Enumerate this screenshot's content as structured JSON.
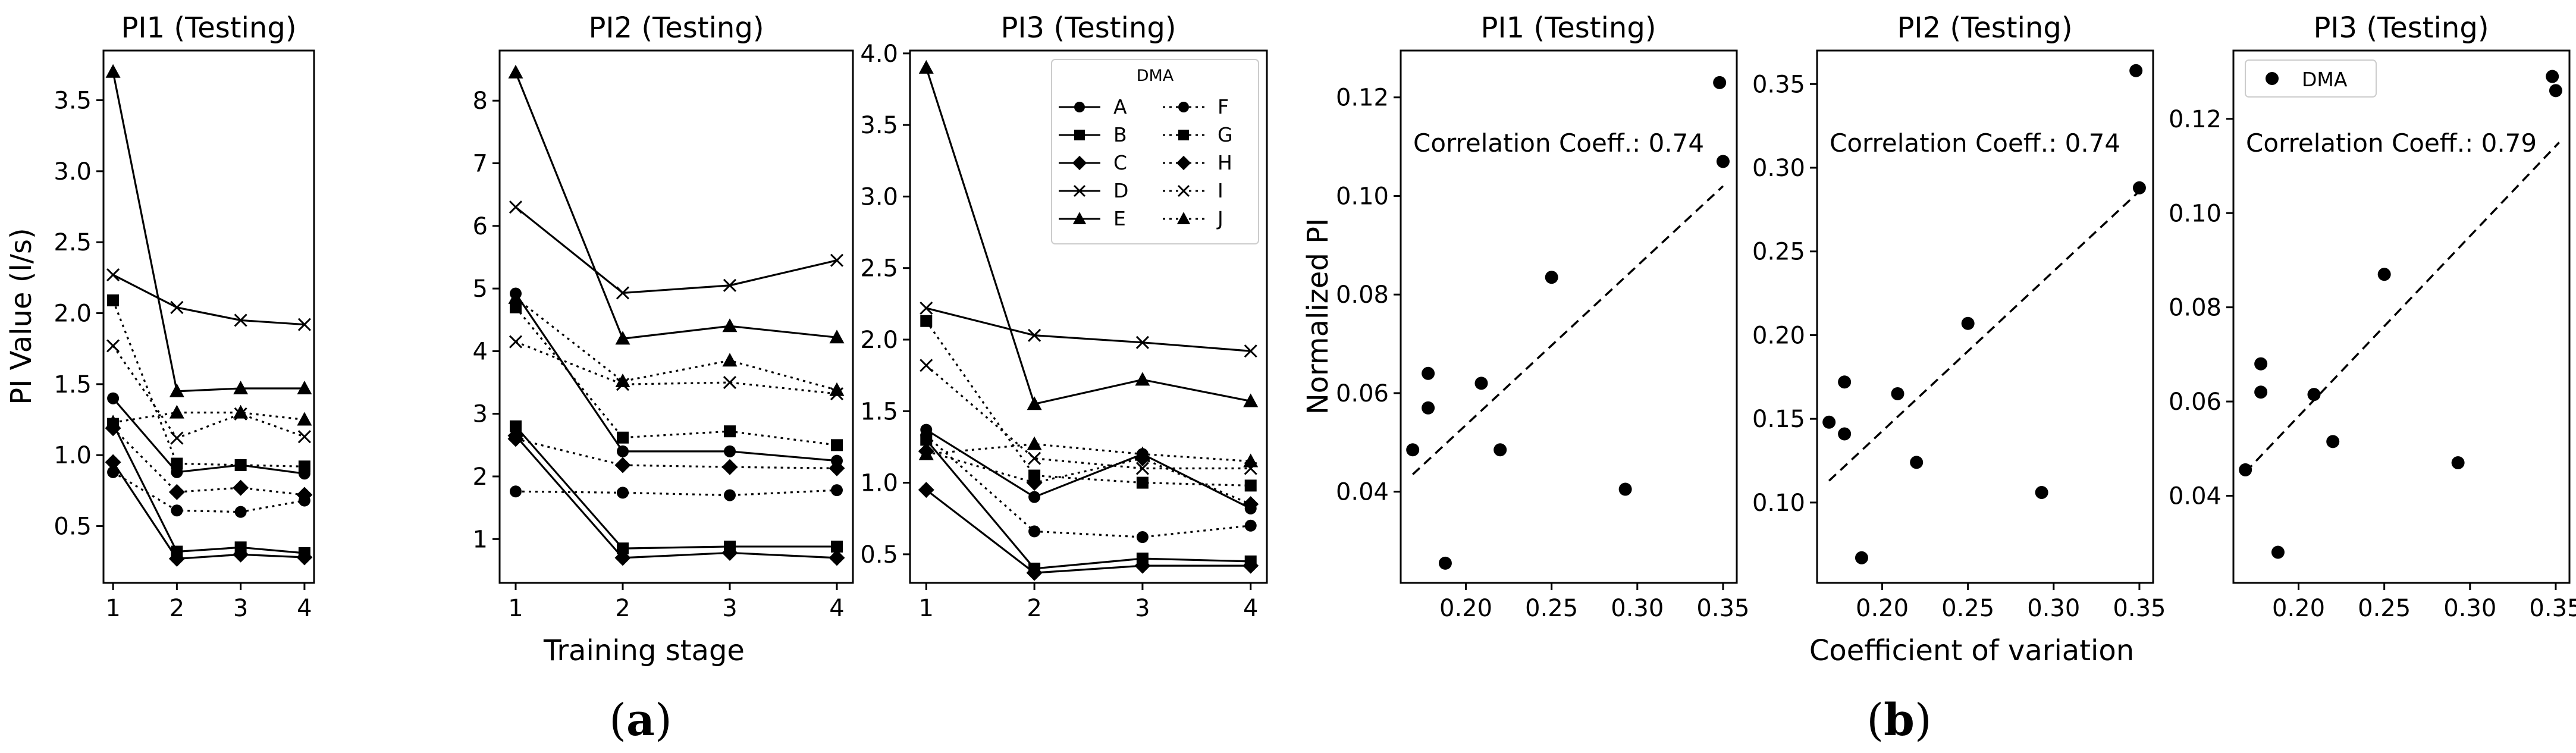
{
  "chart_data": [
    {
      "type": "line",
      "title": "PI1 (Testing)",
      "xlabel": "",
      "ylabel": "PI Value (l/s)",
      "x": [
        1,
        2,
        3,
        4
      ],
      "ylim": [
        0.1,
        3.85
      ],
      "yticks": [
        0.5,
        1.0,
        1.5,
        2.0,
        2.5,
        3.0,
        3.5
      ],
      "series": [
        {
          "name": "A",
          "values": [
            1.4,
            0.88,
            0.93,
            0.87
          ]
        },
        {
          "name": "B",
          "values": [
            1.22,
            0.32,
            0.35,
            0.31
          ]
        },
        {
          "name": "C",
          "values": [
            0.95,
            0.27,
            0.3,
            0.28
          ]
        },
        {
          "name": "D",
          "values": [
            2.27,
            2.04,
            1.95,
            1.92
          ]
        },
        {
          "name": "E",
          "values": [
            3.7,
            1.45,
            1.47,
            1.47
          ]
        },
        {
          "name": "F",
          "values": [
            0.88,
            0.61,
            0.6,
            0.68
          ]
        },
        {
          "name": "G",
          "values": [
            2.09,
            0.94,
            0.93,
            0.92
          ]
        },
        {
          "name": "H",
          "values": [
            1.19,
            0.74,
            0.77,
            0.72
          ]
        },
        {
          "name": "I",
          "values": [
            1.77,
            1.12,
            1.29,
            1.13
          ]
        },
        {
          "name": "J",
          "values": [
            1.23,
            1.3,
            1.3,
            1.25
          ]
        }
      ]
    },
    {
      "type": "line",
      "title": "PI2 (Testing)",
      "xlabel": "Training stage",
      "ylabel": "",
      "x": [
        1,
        2,
        3,
        4
      ],
      "ylim": [
        0.3,
        8.8
      ],
      "yticks": [
        1,
        2,
        3,
        4,
        5,
        6,
        7,
        8
      ],
      "series": [
        {
          "name": "A",
          "values": [
            4.92,
            2.4,
            2.4,
            2.25
          ]
        },
        {
          "name": "B",
          "values": [
            2.8,
            0.85,
            0.88,
            0.88
          ]
        },
        {
          "name": "C",
          "values": [
            2.65,
            0.7,
            0.78,
            0.7
          ]
        },
        {
          "name": "D",
          "values": [
            6.3,
            4.93,
            5.05,
            5.45
          ]
        },
        {
          "name": "E",
          "values": [
            8.45,
            4.2,
            4.4,
            4.22
          ]
        },
        {
          "name": "F",
          "values": [
            1.76,
            1.74,
            1.7,
            1.78
          ]
        },
        {
          "name": "G",
          "values": [
            4.7,
            2.62,
            2.72,
            2.5
          ]
        },
        {
          "name": "H",
          "values": [
            2.6,
            2.18,
            2.15,
            2.13
          ]
        },
        {
          "name": "I",
          "values": [
            4.15,
            3.47,
            3.5,
            3.32
          ]
        },
        {
          "name": "J",
          "values": [
            4.85,
            3.52,
            3.85,
            3.38
          ]
        }
      ]
    },
    {
      "type": "line",
      "title": "PI3 (Testing)",
      "xlabel": "",
      "ylabel": "",
      "x": [
        1,
        2,
        3,
        4
      ],
      "ylim": [
        0.3,
        4.02
      ],
      "yticks": [
        0.5,
        1.0,
        1.5,
        2.0,
        2.5,
        3.0,
        3.5,
        4.0
      ],
      "legend_title": "DMA",
      "legend_position": "top-right",
      "series": [
        {
          "name": "A",
          "values": [
            1.37,
            0.9,
            1.2,
            0.82
          ]
        },
        {
          "name": "B",
          "values": [
            1.3,
            0.4,
            0.47,
            0.45
          ]
        },
        {
          "name": "C",
          "values": [
            0.95,
            0.37,
            0.42,
            0.42
          ]
        },
        {
          "name": "D",
          "values": [
            2.22,
            2.03,
            1.98,
            1.92
          ]
        },
        {
          "name": "E",
          "values": [
            3.9,
            1.55,
            1.72,
            1.57
          ]
        },
        {
          "name": "F",
          "values": [
            1.33,
            0.66,
            0.62,
            0.7
          ]
        },
        {
          "name": "G",
          "values": [
            2.13,
            1.05,
            1.0,
            0.98
          ]
        },
        {
          "name": "H",
          "values": [
            1.22,
            1.0,
            1.17,
            0.85
          ]
        },
        {
          "name": "I",
          "values": [
            1.82,
            1.17,
            1.1,
            1.1
          ]
        },
        {
          "name": "J",
          "values": [
            1.2,
            1.27,
            1.2,
            1.15
          ]
        }
      ]
    },
    {
      "type": "scatter",
      "title": "PI1 (Testing)",
      "xlabel": "",
      "ylabel": "Normalized PI",
      "xlim": [
        0.162,
        0.358
      ],
      "ylim": [
        0.0215,
        0.1295
      ],
      "xticks": [
        0.2,
        0.25,
        0.3,
        0.35
      ],
      "xtick_labels": [
        "0.20",
        "0.25",
        "0.30",
        "0.35"
      ],
      "yticks": [
        0.04,
        0.06,
        0.08,
        0.1,
        0.12
      ],
      "ytick_labels": [
        "0.04",
        "0.06",
        "0.08",
        "0.10",
        "0.12"
      ],
      "annotation": "Correlation Coeff.: 0.74",
      "x": [
        0.169,
        0.178,
        0.178,
        0.188,
        0.209,
        0.22,
        0.25,
        0.293,
        0.348,
        0.35
      ],
      "y": [
        0.0485,
        0.057,
        0.064,
        0.0255,
        0.062,
        0.0485,
        0.0835,
        0.0405,
        0.123,
        0.107
      ],
      "trend": {
        "x": [
          0.169,
          0.35
        ],
        "y": [
          0.0435,
          0.102
        ]
      }
    },
    {
      "type": "scatter",
      "title": "PI2 (Testing)",
      "xlabel": "Coefficient of variation",
      "ylabel": "",
      "xlim": [
        0.162,
        0.358
      ],
      "ylim": [
        0.052,
        0.37
      ],
      "xticks": [
        0.2,
        0.25,
        0.3,
        0.35
      ],
      "xtick_labels": [
        "0.20",
        "0.25",
        "0.30",
        "0.35"
      ],
      "yticks": [
        0.1,
        0.15,
        0.2,
        0.25,
        0.3,
        0.35
      ],
      "ytick_labels": [
        "0.10",
        "0.15",
        "0.20",
        "0.25",
        "0.30",
        "0.35"
      ],
      "annotation": "Correlation Coeff.: 0.74",
      "x": [
        0.169,
        0.178,
        0.178,
        0.188,
        0.209,
        0.22,
        0.25,
        0.293,
        0.348,
        0.35
      ],
      "y": [
        0.148,
        0.141,
        0.172,
        0.067,
        0.165,
        0.124,
        0.207,
        0.106,
        0.358,
        0.288
      ],
      "trend": {
        "x": [
          0.169,
          0.35
        ],
        "y": [
          0.113,
          0.286
        ]
      }
    },
    {
      "type": "scatter",
      "title": "PI3 (Testing)",
      "xlabel": "",
      "ylabel": "",
      "xlim": [
        0.162,
        0.358
      ],
      "ylim": [
        0.0215,
        0.1345
      ],
      "xticks": [
        0.2,
        0.25,
        0.3,
        0.35
      ],
      "xtick_labels": [
        "0.20",
        "0.25",
        "0.30",
        "0.35"
      ],
      "yticks": [
        0.04,
        0.06,
        0.08,
        0.1,
        0.12
      ],
      "ytick_labels": [
        "0.04",
        "0.06",
        "0.08",
        "0.10",
        "0.12"
      ],
      "annotation": "Correlation Coeff.: 0.79",
      "legend_label": "DMA",
      "legend_position": "top-left",
      "x": [
        0.169,
        0.178,
        0.178,
        0.188,
        0.209,
        0.22,
        0.25,
        0.293,
        0.348,
        0.35
      ],
      "y": [
        0.0455,
        0.068,
        0.062,
        0.028,
        0.0615,
        0.0515,
        0.087,
        0.047,
        0.129,
        0.126
      ],
      "trend": {
        "x": [
          0.169,
          0.352
        ],
        "y": [
          0.045,
          0.115
        ]
      }
    }
  ],
  "panel_labels": {
    "a": "a",
    "b": "b"
  }
}
